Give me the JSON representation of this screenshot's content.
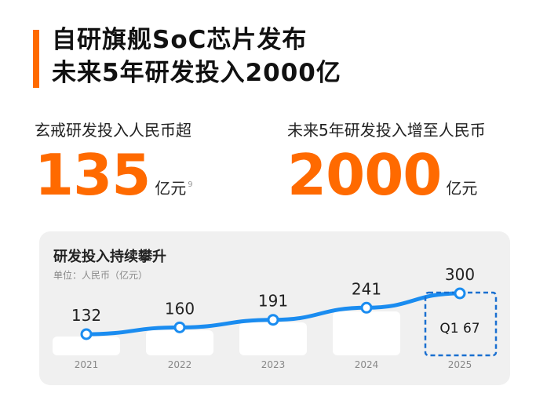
{
  "headline": {
    "line1": "自研旗舰SoC芯片发布",
    "line2": "未来5年研发投入2000亿"
  },
  "stats": [
    {
      "label": "玄戒研发投入人民币超",
      "value": "135",
      "unit": "亿元",
      "footnote": "9"
    },
    {
      "label": "未来5年研发投入增至人民币",
      "value": "2000",
      "unit": "亿元"
    }
  ],
  "chart_data": {
    "type": "line",
    "title": "研发投入持续攀升",
    "unit_label": "单位：人民币（亿元）",
    "categories": [
      "2021",
      "2022",
      "2023",
      "2024",
      "2025"
    ],
    "values": [
      132,
      160,
      191,
      241,
      300
    ],
    "value_labels": [
      "132",
      "160",
      "191",
      "241",
      "300"
    ],
    "annotation": {
      "category": "2025",
      "text": "Q1 67"
    },
    "colors": {
      "line": "#1a8cf0",
      "accent": "#ff6a00",
      "annotation_border": "#1a6fd0"
    }
  }
}
